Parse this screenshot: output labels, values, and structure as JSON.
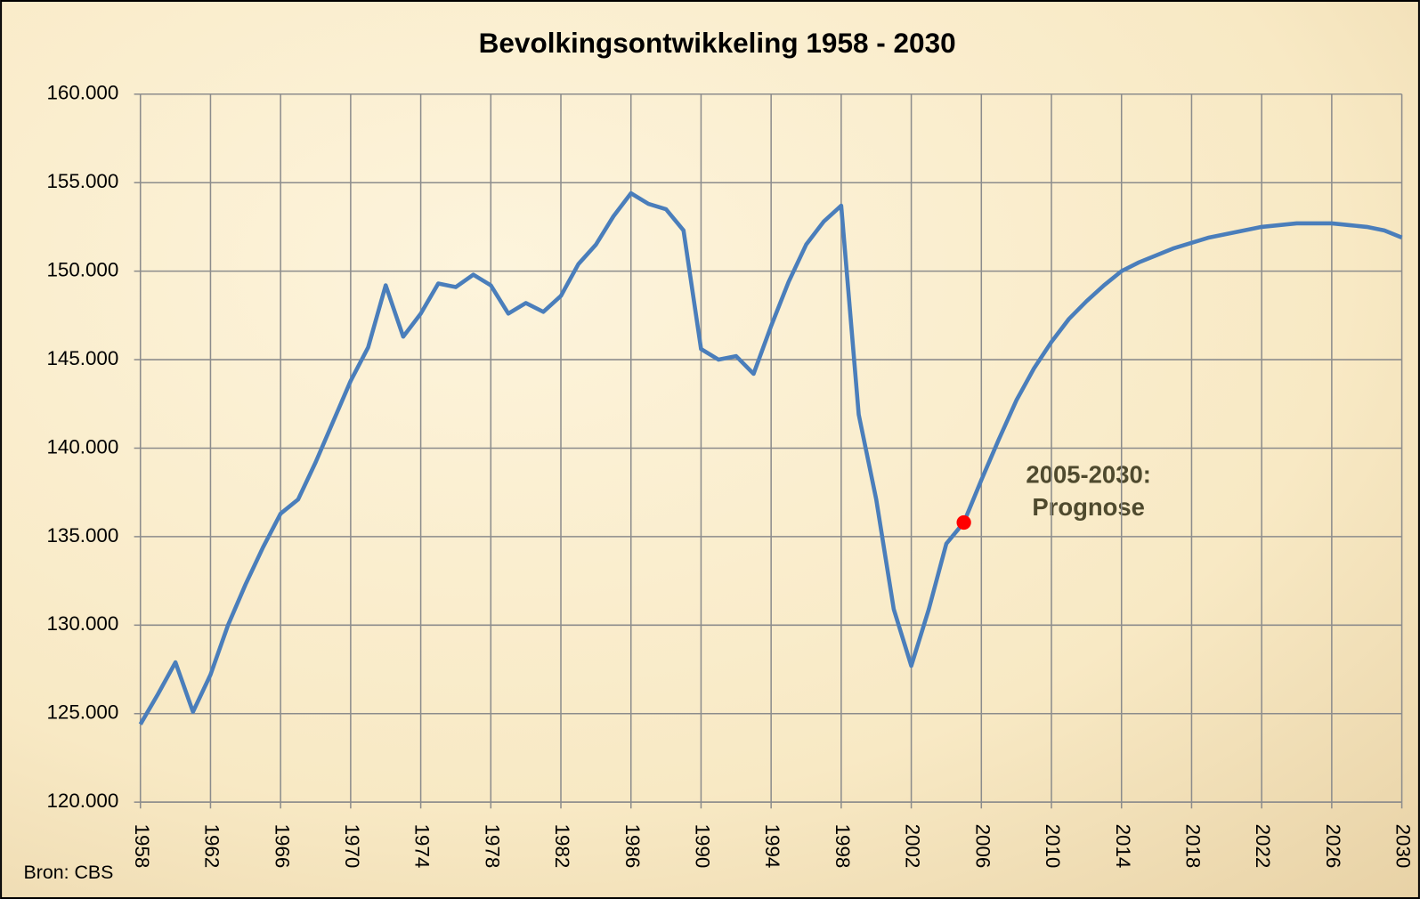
{
  "chart_data": {
    "type": "line",
    "title": "Bevolkingsontwikkeling 1958 - 2030",
    "source": "Bron: CBS",
    "annotation": [
      "2005-2030:",
      "Prognose"
    ],
    "x": [
      1958,
      1959,
      1960,
      1961,
      1962,
      1963,
      1964,
      1965,
      1966,
      1967,
      1968,
      1969,
      1970,
      1971,
      1972,
      1973,
      1974,
      1975,
      1976,
      1977,
      1978,
      1979,
      1980,
      1981,
      1982,
      1983,
      1984,
      1985,
      1986,
      1987,
      1988,
      1989,
      1990,
      1991,
      1992,
      1993,
      1994,
      1995,
      1996,
      1997,
      1998,
      1999,
      2000,
      2001,
      2002,
      2003,
      2004,
      2005,
      2006,
      2007,
      2008,
      2009,
      2010,
      2011,
      2012,
      2013,
      2014,
      2015,
      2016,
      2017,
      2018,
      2019,
      2020,
      2021,
      2022,
      2023,
      2024,
      2025,
      2026,
      2027,
      2028,
      2029,
      2030
    ],
    "series": [
      {
        "color": "#4a7ebb",
        "values": [
          124400,
          126100,
          127900,
          125100,
          127200,
          130000,
          132300,
          134400,
          136300,
          137100,
          139200,
          141500,
          143800,
          145700,
          149200,
          146300,
          147600,
          149300,
          149100,
          149800,
          149200,
          147600,
          148200,
          147700,
          148600,
          150400,
          151500,
          153100,
          154400,
          153800,
          153500,
          152300,
          145600,
          145000,
          145200,
          144200,
          146900,
          149400,
          151500,
          152800,
          153700,
          141900,
          137100,
          130900,
          127700,
          130900,
          134600,
          135800,
          138200,
          140500,
          142700,
          144500,
          146000,
          147300,
          148300,
          149200,
          150000,
          150500,
          150900,
          151300,
          151600,
          151900,
          152100,
          152300,
          152500,
          152600,
          152700,
          152700,
          152700,
          152600,
          152500,
          152300,
          151900
        ]
      }
    ],
    "marker": {
      "x": 2005,
      "color": "#ff0000"
    },
    "xlim": [
      1958,
      2030
    ],
    "xticks": [
      1958,
      1962,
      1966,
      1970,
      1974,
      1978,
      1982,
      1986,
      1990,
      1994,
      1998,
      2002,
      2006,
      2010,
      2014,
      2018,
      2022,
      2026,
      2030
    ],
    "ylim": [
      120000,
      160000
    ],
    "yticks": [
      {
        "value": 120000,
        "label": "120.000"
      },
      {
        "value": 125000,
        "label": "125.000"
      },
      {
        "value": 130000,
        "label": "130.000"
      },
      {
        "value": 135000,
        "label": "135.000"
      },
      {
        "value": 140000,
        "label": "140.000"
      },
      {
        "value": 145000,
        "label": "145.000"
      },
      {
        "value": 150000,
        "label": "150.000"
      },
      {
        "value": 155000,
        "label": "155.000"
      },
      {
        "value": 160000,
        "label": "160.000"
      }
    ],
    "grid": true
  }
}
